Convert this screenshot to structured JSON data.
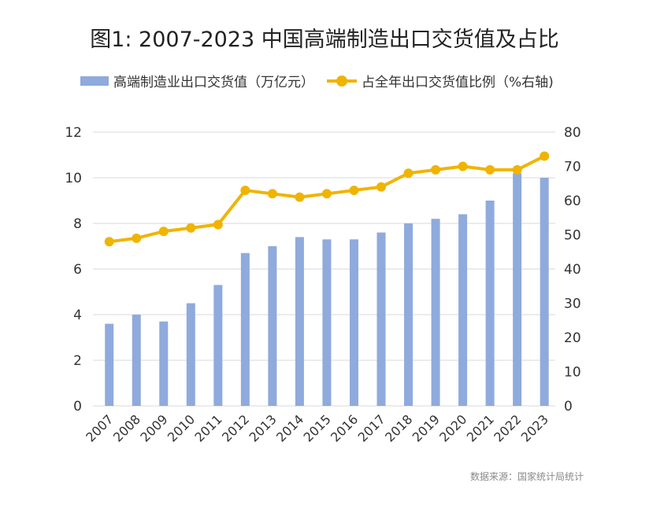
{
  "chart_data": {
    "type": "bar+line",
    "title": "图1: 2007-2023 中国高端制造出口交货值及占比",
    "categories": [
      "2007",
      "2008",
      "2009",
      "2010",
      "2011",
      "2012",
      "2013",
      "2014",
      "2015",
      "2016",
      "2017",
      "2018",
      "2019",
      "2020",
      "2021",
      "2022",
      "2023"
    ],
    "series": [
      {
        "name": "高端制造业出口交货值（万亿元）",
        "type": "bar",
        "axis": "left",
        "color": "#8faadc",
        "values": [
          3.6,
          4.0,
          3.7,
          4.5,
          5.3,
          6.7,
          7.0,
          7.4,
          7.3,
          7.3,
          7.6,
          8.0,
          8.2,
          8.4,
          9.0,
          10.2,
          10.0
        ]
      },
      {
        "name": "占全年出口交货值比例（%右轴)",
        "type": "line",
        "axis": "right",
        "color": "#f0b400",
        "values": [
          48,
          49,
          51,
          52,
          53,
          63,
          62,
          61,
          62,
          63,
          64,
          68,
          69,
          70,
          69,
          69,
          73
        ]
      }
    ],
    "ylim": [
      0,
      12
    ],
    "yticks": [
      "0",
      "2",
      "4",
      "6",
      "8",
      "10",
      "12"
    ],
    "y2lim": [
      0,
      80
    ],
    "y2ticks": [
      "0",
      "10",
      "20",
      "30",
      "40",
      "50",
      "60",
      "70",
      "80"
    ],
    "grid": true,
    "legend": "top",
    "source": "数据来源：国家统计局统计"
  }
}
